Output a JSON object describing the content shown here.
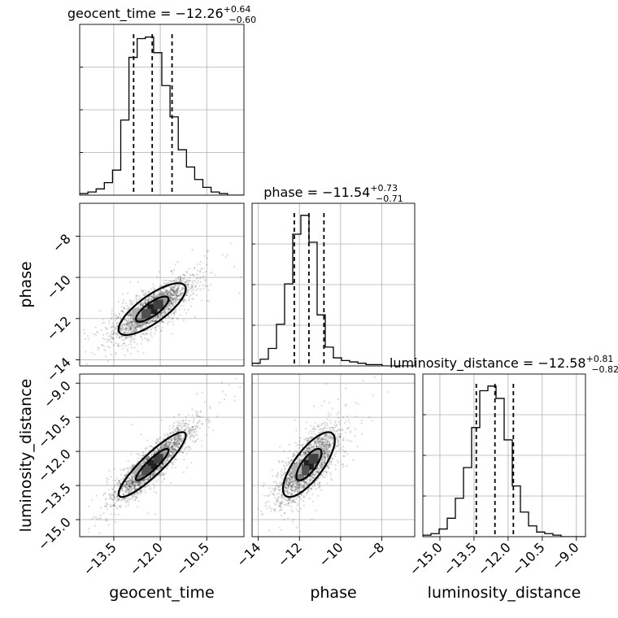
{
  "chart_data": {
    "type": "corner",
    "parameters": [
      "geocent_time",
      "phase",
      "luminosity_distance"
    ],
    "axis_labels": {
      "geocent_time": "geocent_time",
      "phase": "phase",
      "luminosity_distance": "luminosity_distance"
    },
    "ranges": {
      "geocent_time": [
        -14.6,
        -9.3
      ],
      "phase": [
        -14.3,
        -6.4
      ],
      "luminosity_distance": [
        -15.75,
        -8.6
      ]
    },
    "ticks": {
      "geocent_time": [
        -13.5,
        -12.0,
        -10.5
      ],
      "phase": [
        -14,
        -12,
        -10,
        -8
      ],
      "luminosity_distance_x": [
        -15.0,
        -13.5,
        -12.0,
        -10.5,
        -9.0
      ],
      "luminosity_distance_y": [
        -15.0,
        -13.5,
        -12.0,
        -10.5,
        -9.0
      ]
    },
    "tick_labels": {
      "geocent_time": [
        "−13.5",
        "−12.0",
        "−10.5"
      ],
      "phase": [
        "−14",
        "−12",
        "−10",
        "−8"
      ],
      "luminosity_distance_x": [
        "−15.0",
        "−13.5",
        "−12.0",
        "−10.5",
        "−9.0"
      ],
      "luminosity_distance_y": [
        "−15.0",
        "−13.5",
        "−12.0",
        "−10.5",
        "−9.0"
      ]
    },
    "titles": [
      {
        "param": "geocent_time",
        "main": "geocent_time = −12.26",
        "plus": "+0.64",
        "minus": "−0.60"
      },
      {
        "param": "phase",
        "main": "phase = −11.54",
        "plus": "+0.73",
        "minus": "−0.71"
      },
      {
        "param": "luminosity_distance",
        "main": "luminosity_distance = −12.58",
        "plus": "+0.81",
        "minus": "−0.82"
      }
    ],
    "quantiles": {
      "geocent_time": [
        -12.86,
        -12.26,
        -11.62
      ],
      "phase": [
        -12.25,
        -11.54,
        -10.81
      ],
      "luminosity_distance": [
        -13.4,
        -12.58,
        -11.77
      ]
    },
    "histograms": {
      "geocent_time": {
        "bin_start": -14.6,
        "bin_width": 0.265,
        "counts": [
          1,
          2,
          4,
          8,
          16,
          48,
          88,
          100,
          101,
          91,
          70,
          50,
          29,
          18,
          10,
          5,
          2,
          1,
          0,
          0
        ]
      },
      "phase": {
        "bin_start": -14.3,
        "bin_width": 0.395,
        "counts": [
          2,
          5,
          13,
          31,
          61,
          98,
          112,
          92,
          38,
          14,
          6,
          4,
          3,
          2,
          1,
          1,
          0,
          0,
          0,
          0
        ]
      },
      "luminosity_distance": {
        "bin_start": -15.75,
        "bin_width": 0.3575,
        "counts": [
          1,
          2,
          5,
          12,
          25,
          45,
          71,
          95,
          98,
          90,
          63,
          33,
          16,
          7,
          3,
          2,
          1,
          0,
          0,
          0
        ]
      }
    },
    "correlations": {
      "phase_vs_geocent_time": 0.78,
      "luminosity_distance_vs_geocent_time": 0.9,
      "luminosity_distance_vs_phase": 0.75
    },
    "grid": true
  }
}
